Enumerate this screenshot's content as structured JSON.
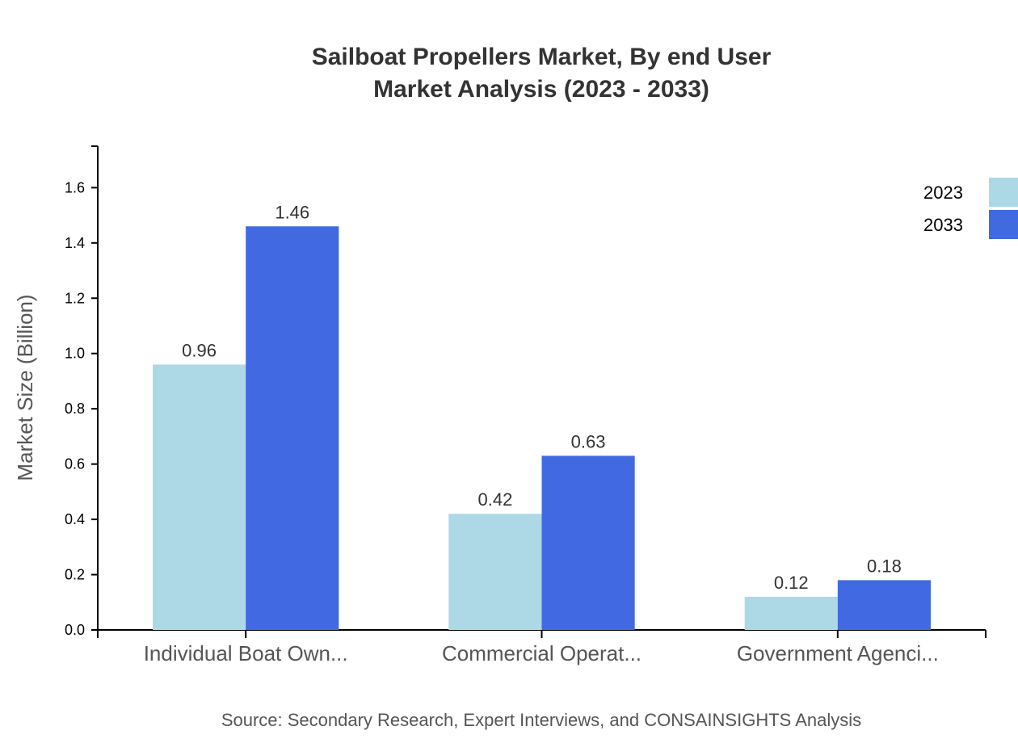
{
  "chart_data": {
    "type": "bar",
    "title": [
      "Sailboat Propellers Market, By end User",
      "Market Analysis (2023 - 2033)"
    ],
    "xlabel": "",
    "ylabel": "Market Size (Billion)",
    "categories": [
      "Individual Boat Own...",
      "Commercial Operat...",
      "Government Agenci..."
    ],
    "series": [
      {
        "name": "2023",
        "values": [
          0.96,
          0.42,
          0.12
        ],
        "color": "#add8e6"
      },
      {
        "name": "2033",
        "values": [
          1.46,
          0.63,
          0.18
        ],
        "color": "#4169e1"
      }
    ],
    "ylim": [
      0,
      1.75
    ],
    "yticks": [
      "0.0",
      "0.2",
      "0.4",
      "0.6",
      "0.8",
      "1.0",
      "1.2",
      "1.4",
      "1.6"
    ],
    "grid": false,
    "legend_position": "top-right",
    "source": "Source: Secondary Research, Expert Interviews, and CONSAINSIGHTS Analysis"
  }
}
